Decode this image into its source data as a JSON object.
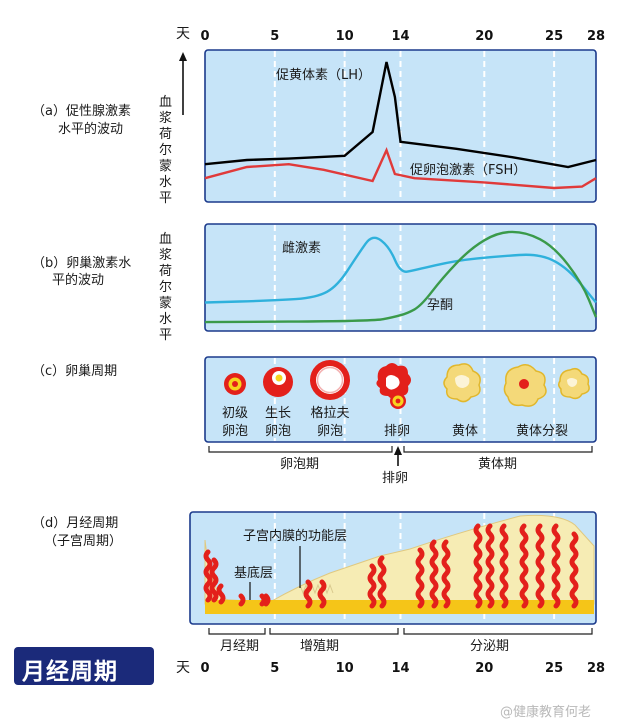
{
  "day_unit": "天",
  "day_ticks": [
    "0",
    "5",
    "10",
    "14",
    "20",
    "25",
    "28"
  ],
  "panel_a": {
    "label_line1": "（a）促性腺激素",
    "label_line2": "水平的波动",
    "y_axis_label": "血浆荷尔蒙水平",
    "lh_label": "促黄体素（LH）",
    "fsh_label": "促卵泡激素（FSH）"
  },
  "panel_b": {
    "label_line1": "（b）卵巢激素水",
    "label_line2": "平的波动",
    "y_axis_label": "血浆荷尔蒙水平",
    "estrogen_label": "雌激素",
    "progesterone_label": "孕酮"
  },
  "panel_c": {
    "label": "（c）卵巢周期",
    "stages": [
      {
        "line1": "初级",
        "line2": "卵泡"
      },
      {
        "line1": "生长",
        "line2": "卵泡"
      },
      {
        "line1": "格拉夫",
        "line2": "卵泡"
      },
      {
        "line1": "排卵",
        "line2": ""
      },
      {
        "line1": "黄体",
        "line2": ""
      },
      {
        "line1": "黄体分裂",
        "line2": ""
      }
    ],
    "follicular_phase": "卵泡期",
    "luteal_phase": "黄体期",
    "ovulation_arrow_label": "排卵"
  },
  "panel_d": {
    "label_line1": "（d）月经周期",
    "label_line2": "（子宫周期）",
    "functional_layer_label": "子宫内膜的功能层",
    "basal_layer_label": "基底层",
    "menstrual_phase": "月经期",
    "proliferative_phase": "增殖期",
    "secretory_phase": "分泌期"
  },
  "title": "月经周期",
  "watermark": "@健康教育何老",
  "colors": {
    "panel_fill": "#c6e4f8",
    "panel_border": "#1b3a8c",
    "lh": "#000000",
    "fsh": "#e03a3a",
    "estrogen": "#2fb1dc",
    "progesterone": "#3a9a4a",
    "follicle_red": "#e3201b",
    "follicle_yellow": "#f7d31e",
    "corpus_yellow": "#f4d979",
    "endometrium": "#f6ecb4",
    "basal": "#f5c518",
    "title_bg": "#1b2a7a"
  },
  "chart_data": {
    "type": "line",
    "x_unit": "天",
    "x_ticks": [
      0,
      5,
      10,
      14,
      20,
      25,
      28
    ],
    "series": [
      {
        "name": "促黄体素（LH）",
        "points": [
          [
            0,
            0.22
          ],
          [
            3,
            0.25
          ],
          [
            6,
            0.26
          ],
          [
            10,
            0.28
          ],
          [
            12,
            0.45
          ],
          [
            13,
            0.95
          ],
          [
            13.6,
            0.7
          ],
          [
            14,
            0.38
          ],
          [
            18,
            0.33
          ],
          [
            22,
            0.27
          ],
          [
            26,
            0.2
          ],
          [
            28,
            0.25
          ]
        ]
      },
      {
        "name": "促卵泡激素（FSH）",
        "points": [
          [
            0,
            0.12
          ],
          [
            3,
            0.2
          ],
          [
            6,
            0.22
          ],
          [
            8.5,
            0.18
          ],
          [
            12,
            0.1
          ],
          [
            13,
            0.32
          ],
          [
            13.6,
            0.15
          ],
          [
            15,
            0.12
          ],
          [
            20,
            0.09
          ],
          [
            25,
            0.05
          ],
          [
            27,
            0.06
          ],
          [
            28,
            0.12
          ]
        ]
      },
      {
        "name": "雌激素",
        "points": [
          [
            0,
            0.25
          ],
          [
            5,
            0.27
          ],
          [
            8,
            0.3
          ],
          [
            9.5,
            0.42
          ],
          [
            11,
            0.75
          ],
          [
            12,
            0.95
          ],
          [
            13.2,
            0.82
          ],
          [
            14,
            0.55
          ],
          [
            15,
            0.58
          ],
          [
            18,
            0.68
          ],
          [
            21,
            0.72
          ],
          [
            24,
            0.75
          ],
          [
            26,
            0.6
          ],
          [
            28,
            0.25
          ]
        ]
      },
      {
        "name": "孕酮",
        "points": [
          [
            0,
            0.05
          ],
          [
            12,
            0.06
          ],
          [
            13.5,
            0.1
          ],
          [
            14.5,
            0.14
          ],
          [
            15.5,
            0.22
          ],
          [
            17,
            0.5
          ],
          [
            19,
            0.8
          ],
          [
            21,
            0.97
          ],
          [
            23,
            0.97
          ],
          [
            25,
            0.82
          ],
          [
            27,
            0.45
          ],
          [
            28,
            0.1
          ]
        ]
      }
    ]
  }
}
